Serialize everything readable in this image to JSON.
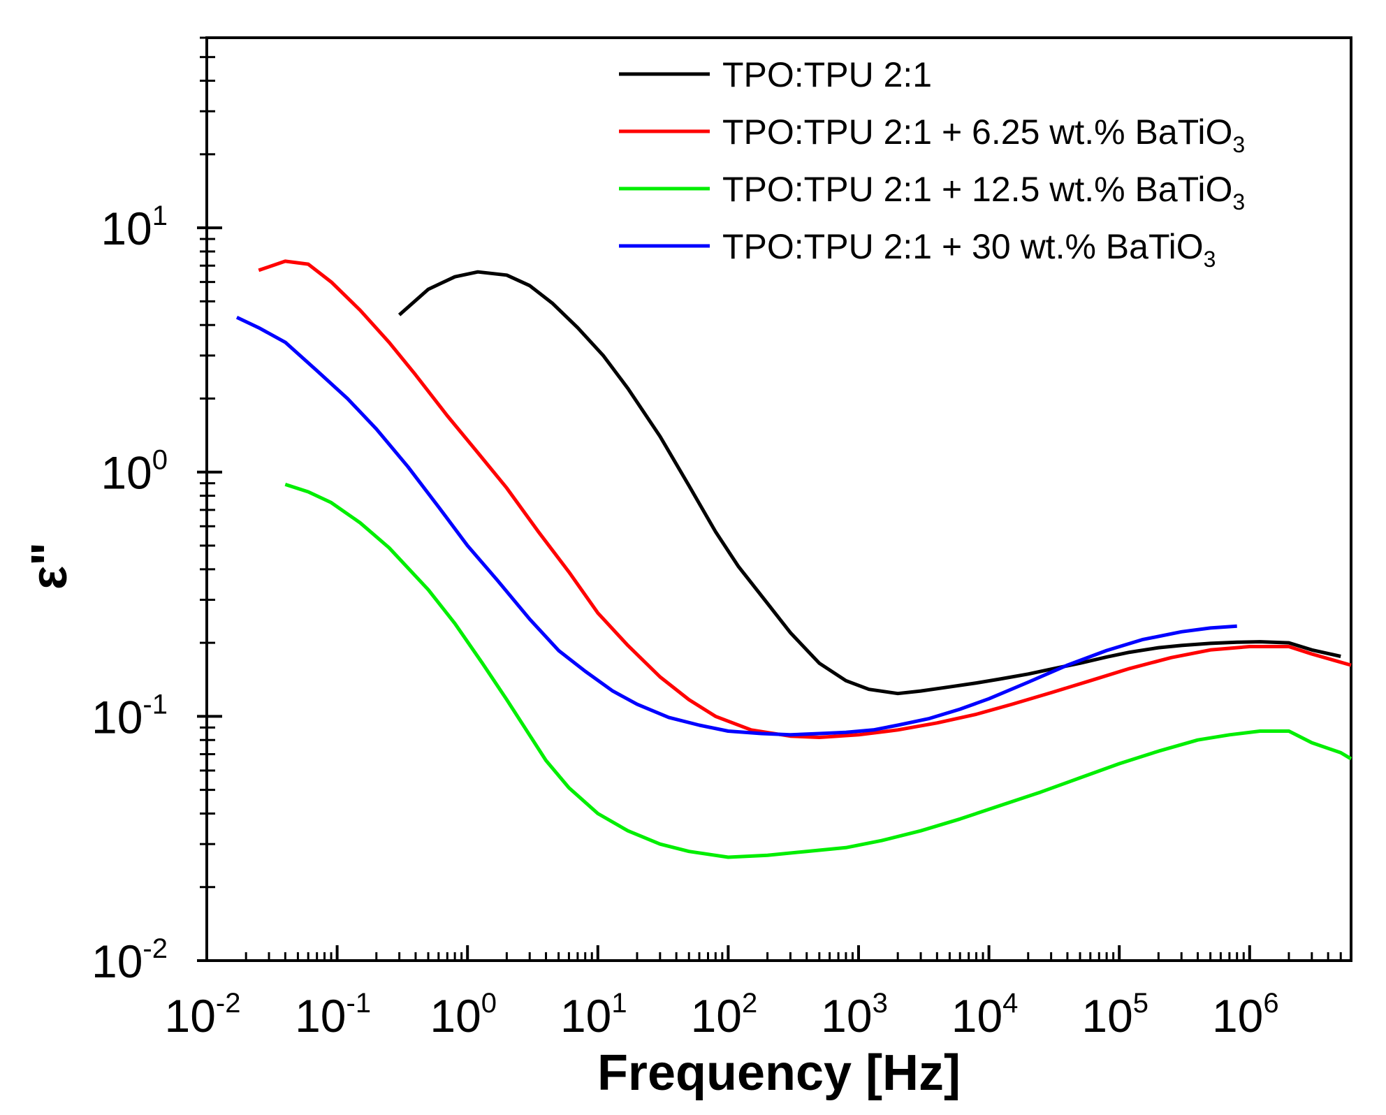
{
  "chart_data": {
    "type": "line",
    "title": "",
    "xlabel": "Frequency [Hz]",
    "ylabel": "ε\"",
    "xscale": "log",
    "yscale": "log",
    "xlim": [
      0.01,
      6000000
    ],
    "ylim": [
      0.01,
      60
    ],
    "x_ticks": [
      {
        "base": "10",
        "exp": "-2"
      },
      {
        "base": "10",
        "exp": "-1"
      },
      {
        "base": "10",
        "exp": "0"
      },
      {
        "base": "10",
        "exp": "1"
      },
      {
        "base": "10",
        "exp": "2"
      },
      {
        "base": "10",
        "exp": "3"
      },
      {
        "base": "10",
        "exp": "4"
      },
      {
        "base": "10",
        "exp": "5"
      },
      {
        "base": "10",
        "exp": "6"
      }
    ],
    "y_ticks": [
      {
        "base": "10",
        "exp": "-2"
      },
      {
        "base": "10",
        "exp": "-1"
      },
      {
        "base": "10",
        "exp": "0"
      },
      {
        "base": "10",
        "exp": "1"
      }
    ],
    "legend_position": "top-right",
    "series": [
      {
        "name": "TPO:TPU 2:1",
        "label_main": "TPO:TPU 2:1",
        "label_sub": "",
        "color": "#000000",
        "x": [
          0.3,
          0.5,
          0.8,
          1.2,
          2,
          3,
          4.5,
          7,
          11,
          17,
          30,
          50,
          80,
          120,
          200,
          300,
          500,
          800,
          1200,
          2000,
          3000,
          5000,
          8000,
          12000,
          20000,
          30000,
          50000,
          80000,
          120000,
          200000,
          300000,
          500000,
          800000,
          1200000,
          2000000,
          3000000,
          5000000
        ],
        "y": [
          4.4,
          5.6,
          6.3,
          6.6,
          6.4,
          5.8,
          4.9,
          3.9,
          3.0,
          2.2,
          1.4,
          0.88,
          0.57,
          0.41,
          0.29,
          0.22,
          0.165,
          0.14,
          0.129,
          0.124,
          0.127,
          0.132,
          0.137,
          0.142,
          0.149,
          0.156,
          0.165,
          0.175,
          0.183,
          0.191,
          0.195,
          0.199,
          0.201,
          0.202,
          0.2,
          0.187,
          0.176
        ]
      },
      {
        "name": "TPO:TPU 2:1 + 6.25 wt.% BaTiO3",
        "label_main": "TPO:TPU 2:1 + 6.25 wt.% BaTiO",
        "label_sub": "3",
        "color": "#ff0000",
        "x": [
          0.025,
          0.04,
          0.06,
          0.09,
          0.15,
          0.25,
          0.4,
          0.7,
          1.2,
          2,
          3.5,
          6,
          10,
          17,
          30,
          50,
          80,
          150,
          300,
          500,
          1000,
          2000,
          4000,
          8000,
          15000,
          30000,
          60000,
          120000,
          250000,
          500000,
          1000000,
          2000000,
          3000000,
          6000000
        ],
        "y": [
          6.7,
          7.3,
          7.1,
          6.0,
          4.6,
          3.4,
          2.5,
          1.7,
          1.2,
          0.86,
          0.57,
          0.39,
          0.265,
          0.195,
          0.145,
          0.117,
          0.1,
          0.088,
          0.083,
          0.082,
          0.084,
          0.088,
          0.094,
          0.102,
          0.112,
          0.125,
          0.14,
          0.157,
          0.174,
          0.187,
          0.193,
          0.193,
          0.18,
          0.162
        ]
      },
      {
        "name": "TPO:TPU 2:1 + 12.5 wt.% BaTiO3",
        "label_main": "TPO:TPU 2:1 + 12.5 wt.% BaTiO",
        "label_sub": "3",
        "color": "#00ee00",
        "x": [
          0.04,
          0.06,
          0.09,
          0.15,
          0.25,
          0.5,
          0.8,
          1.3,
          2,
          4,
          6,
          10,
          17,
          30,
          50,
          100,
          200,
          400,
          800,
          1500,
          3000,
          6000,
          12000,
          25000,
          50000,
          100000,
          200000,
          400000,
          700000,
          1200000,
          2000000,
          3000000,
          5000000,
          6000000
        ],
        "y": [
          0.89,
          0.83,
          0.75,
          0.62,
          0.49,
          0.33,
          0.24,
          0.165,
          0.117,
          0.066,
          0.051,
          0.04,
          0.034,
          0.03,
          0.028,
          0.0265,
          0.027,
          0.028,
          0.029,
          0.031,
          0.034,
          0.038,
          0.043,
          0.049,
          0.056,
          0.064,
          0.072,
          0.08,
          0.084,
          0.087,
          0.087,
          0.078,
          0.071,
          0.067
        ]
      },
      {
        "name": "TPO:TPU 2:1 + 30 wt.% BaTiO3",
        "label_main": "TPO:TPU 2:1 + 30 wt.% BaTiO",
        "label_sub": "3",
        "color": "#0000ff",
        "x": [
          0.017,
          0.025,
          0.04,
          0.07,
          0.12,
          0.2,
          0.35,
          0.6,
          1,
          1.7,
          3,
          5,
          8,
          13,
          20,
          35,
          60,
          100,
          180,
          300,
          500,
          800,
          1300,
          2000,
          3500,
          6000,
          10000,
          20000,
          40000,
          80000,
          150000,
          300000,
          500000,
          800000
        ],
        "y": [
          4.3,
          3.9,
          3.4,
          2.6,
          2.0,
          1.5,
          1.05,
          0.72,
          0.5,
          0.36,
          0.25,
          0.186,
          0.153,
          0.127,
          0.112,
          0.099,
          0.092,
          0.087,
          0.085,
          0.084,
          0.085,
          0.086,
          0.088,
          0.092,
          0.098,
          0.107,
          0.118,
          0.138,
          0.162,
          0.186,
          0.206,
          0.222,
          0.23,
          0.234
        ]
      }
    ]
  }
}
